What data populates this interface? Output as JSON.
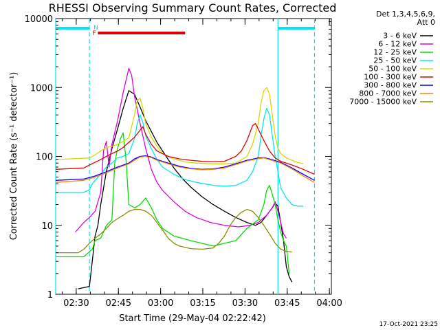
{
  "chart_data": {
    "type": "line",
    "title": "RHESSI Observing Summary Count Rates, Corrected",
    "xlabel": "Start Time (29-May-04 02:22:42)",
    "ylabel": "Corrected Count Rate (s⁻¹ detector⁻¹)",
    "yscale": "log",
    "ylim": [
      1,
      10000
    ],
    "xlim_minutes": [
      0,
      98
    ],
    "xtick_labels": [
      "02:30",
      "02:45",
      "03:00",
      "03:15",
      "03:30",
      "03:45",
      "04:00"
    ],
    "xtick_values_minutes": [
      7.3,
      22.3,
      37.3,
      52.3,
      67.3,
      82.3,
      97.3
    ],
    "ytick_labels": [
      "1",
      "10",
      "100",
      "1000",
      "10000"
    ],
    "ytick_values": [
      1,
      10,
      100,
      1000,
      10000
    ],
    "grid": false,
    "legend_placement": "outside-right",
    "legend_header": [
      "Det 1,3,4,5,6,9,",
      "Att 0"
    ],
    "footer_date": "17-Oct-2021 23:25",
    "annotations": {
      "night_flag": {
        "label": "N",
        "color": "#00e5ee",
        "segments": [
          [
            0,
            12
          ],
          [
            79,
            92
          ]
        ]
      },
      "flare_flag": {
        "label": "F",
        "color": "#e00000",
        "segments": [
          [
            15,
            46
          ]
        ]
      },
      "vlines_solid": [
        0,
        79
      ],
      "vlines_dashed": [
        12,
        92
      ]
    },
    "series": [
      {
        "name": "3 - 6 keV",
        "color": "#000000",
        "points": [
          [
            8,
            1.2
          ],
          [
            12,
            1.3
          ],
          [
            13,
            3
          ],
          [
            14,
            7
          ],
          [
            15,
            10
          ],
          [
            16,
            20
          ],
          [
            18,
            60
          ],
          [
            20,
            130
          ],
          [
            22,
            250
          ],
          [
            24,
            500
          ],
          [
            26,
            900
          ],
          [
            28,
            800
          ],
          [
            30,
            520
          ],
          [
            32,
            330
          ],
          [
            34,
            230
          ],
          [
            36,
            160
          ],
          [
            38,
            120
          ],
          [
            40,
            90
          ],
          [
            42,
            68
          ],
          [
            45,
            48
          ],
          [
            48,
            36
          ],
          [
            52,
            26
          ],
          [
            56,
            20
          ],
          [
            60,
            16
          ],
          [
            64,
            13
          ],
          [
            68,
            11
          ],
          [
            71,
            10
          ],
          [
            73,
            11
          ],
          [
            75,
            14
          ],
          [
            77,
            18
          ],
          [
            78,
            21
          ],
          [
            79,
            19
          ],
          [
            80,
            11
          ],
          [
            81,
            6
          ],
          [
            82,
            2.5
          ],
          [
            83,
            1.8
          ],
          [
            84,
            1.5
          ]
        ]
      },
      {
        "name": "6 - 12 keV",
        "color": "#e000e0",
        "points": [
          [
            7,
            8
          ],
          [
            10,
            11
          ],
          [
            12,
            13
          ],
          [
            14,
            16
          ],
          [
            16,
            30
          ],
          [
            17,
            120
          ],
          [
            18,
            165
          ],
          [
            19,
            70
          ],
          [
            20,
            150
          ],
          [
            22,
            330
          ],
          [
            24,
            850
          ],
          [
            26,
            1900
          ],
          [
            27,
            1500
          ],
          [
            28,
            750
          ],
          [
            30,
            300
          ],
          [
            32,
            130
          ],
          [
            34,
            65
          ],
          [
            36,
            42
          ],
          [
            38,
            32
          ],
          [
            42,
            22
          ],
          [
            46,
            16
          ],
          [
            50,
            13
          ],
          [
            55,
            11
          ],
          [
            60,
            10
          ],
          [
            65,
            9.5
          ],
          [
            69,
            10
          ],
          [
            72,
            11
          ],
          [
            75,
            14
          ],
          [
            77,
            18
          ],
          [
            78,
            22
          ],
          [
            79,
            16
          ],
          [
            80,
            11
          ],
          [
            81,
            7.5
          ],
          [
            82,
            6.5
          ]
        ]
      },
      {
        "name": "12 - 25 keV",
        "color": "#00e000",
        "points": [
          [
            0,
            3.5
          ],
          [
            10,
            3.5
          ],
          [
            13,
            4.5
          ],
          [
            14,
            6
          ],
          [
            16,
            6.5
          ],
          [
            17,
            8
          ],
          [
            18,
            10
          ],
          [
            20,
            12
          ],
          [
            21,
            80
          ],
          [
            22,
            130
          ],
          [
            23,
            180
          ],
          [
            24,
            220
          ],
          [
            25,
            90
          ],
          [
            26,
            20
          ],
          [
            28,
            18
          ],
          [
            30,
            20
          ],
          [
            32,
            25
          ],
          [
            34,
            18
          ],
          [
            36,
            12
          ],
          [
            38,
            9
          ],
          [
            42,
            7
          ],
          [
            48,
            6
          ],
          [
            56,
            5
          ],
          [
            64,
            6
          ],
          [
            68,
            9
          ],
          [
            72,
            12
          ],
          [
            74,
            20
          ],
          [
            75,
            32
          ],
          [
            76,
            38
          ],
          [
            77,
            28
          ],
          [
            78,
            20
          ],
          [
            79,
            12
          ],
          [
            80,
            8
          ],
          [
            81,
            6
          ],
          [
            82,
            5
          ],
          [
            83,
            2
          ]
        ]
      },
      {
        "name": "25 - 50 keV",
        "color": "#00e5ee",
        "points": [
          [
            0,
            30
          ],
          [
            10,
            30
          ],
          [
            12,
            33
          ],
          [
            13,
            40
          ],
          [
            14,
            45
          ],
          [
            16,
            55
          ],
          [
            18,
            70
          ],
          [
            20,
            80
          ],
          [
            22,
            95
          ],
          [
            24,
            100
          ],
          [
            26,
            110
          ],
          [
            28,
            180
          ],
          [
            29,
            300
          ],
          [
            30,
            400
          ],
          [
            31,
            310
          ],
          [
            32,
            200
          ],
          [
            34,
            130
          ],
          [
            36,
            90
          ],
          [
            38,
            70
          ],
          [
            42,
            55
          ],
          [
            46,
            46
          ],
          [
            50,
            42
          ],
          [
            56,
            38
          ],
          [
            60,
            37
          ],
          [
            64,
            38
          ],
          [
            68,
            45
          ],
          [
            70,
            60
          ],
          [
            72,
            100
          ],
          [
            73,
            200
          ],
          [
            74,
            350
          ],
          [
            75,
            500
          ],
          [
            76,
            400
          ],
          [
            77,
            200
          ],
          [
            78,
            100
          ],
          [
            79,
            60
          ],
          [
            80,
            35
          ],
          [
            82,
            25
          ],
          [
            84,
            20
          ],
          [
            86,
            19
          ],
          [
            88,
            19
          ]
        ]
      },
      {
        "name": "50 - 100 keV",
        "color": "#d8d800",
        "points": [
          [
            0,
            90
          ],
          [
            12,
            95
          ],
          [
            14,
            105
          ],
          [
            16,
            120
          ],
          [
            18,
            135
          ],
          [
            20,
            140
          ],
          [
            22,
            150
          ],
          [
            24,
            165
          ],
          [
            26,
            185
          ],
          [
            28,
            400
          ],
          [
            29,
            650
          ],
          [
            30,
            700
          ],
          [
            31,
            500
          ],
          [
            32,
            300
          ],
          [
            34,
            190
          ],
          [
            36,
            140
          ],
          [
            38,
            110
          ],
          [
            42,
            92
          ],
          [
            46,
            83
          ],
          [
            50,
            80
          ],
          [
            56,
            78
          ],
          [
            60,
            78
          ],
          [
            64,
            80
          ],
          [
            68,
            100
          ],
          [
            70,
            150
          ],
          [
            72,
            300
          ],
          [
            73,
            600
          ],
          [
            74,
            900
          ],
          [
            75,
            1000
          ],
          [
            76,
            800
          ],
          [
            77,
            400
          ],
          [
            78,
            200
          ],
          [
            79,
            130
          ],
          [
            80,
            110
          ],
          [
            82,
            95
          ],
          [
            84,
            88
          ],
          [
            86,
            82
          ],
          [
            88,
            78
          ]
        ]
      },
      {
        "name": "100 - 300 keV",
        "color": "#e00000",
        "points": [
          [
            0,
            65
          ],
          [
            10,
            68
          ],
          [
            12,
            75
          ],
          [
            14,
            82
          ],
          [
            16,
            90
          ],
          [
            18,
            100
          ],
          [
            20,
            110
          ],
          [
            22,
            120
          ],
          [
            24,
            135
          ],
          [
            26,
            160
          ],
          [
            28,
            190
          ],
          [
            30,
            240
          ],
          [
            31,
            270
          ],
          [
            32,
            210
          ],
          [
            34,
            150
          ],
          [
            36,
            120
          ],
          [
            40,
            100
          ],
          [
            44,
            92
          ],
          [
            48,
            88
          ],
          [
            52,
            85
          ],
          [
            56,
            84
          ],
          [
            60,
            85
          ],
          [
            64,
            100
          ],
          [
            66,
            120
          ],
          [
            68,
            170
          ],
          [
            70,
            280
          ],
          [
            71,
            300
          ],
          [
            72,
            250
          ],
          [
            74,
            170
          ],
          [
            76,
            120
          ],
          [
            78,
            95
          ],
          [
            80,
            85
          ],
          [
            84,
            75
          ],
          [
            88,
            65
          ],
          [
            92,
            55
          ]
        ]
      },
      {
        "name": "300 - 800 keV",
        "color": "#0000ff",
        "points": [
          [
            0,
            45
          ],
          [
            10,
            47
          ],
          [
            14,
            52
          ],
          [
            18,
            60
          ],
          [
            22,
            70
          ],
          [
            26,
            80
          ],
          [
            28,
            92
          ],
          [
            30,
            100
          ],
          [
            32,
            102
          ],
          [
            34,
            98
          ],
          [
            36,
            90
          ],
          [
            40,
            80
          ],
          [
            44,
            72
          ],
          [
            48,
            67
          ],
          [
            52,
            65
          ],
          [
            56,
            66
          ],
          [
            60,
            70
          ],
          [
            64,
            78
          ],
          [
            68,
            88
          ],
          [
            72,
            95
          ],
          [
            74,
            96
          ],
          [
            76,
            92
          ],
          [
            80,
            82
          ],
          [
            84,
            68
          ],
          [
            88,
            55
          ],
          [
            92,
            45
          ]
        ]
      },
      {
        "name": "800 - 7000 keV",
        "color": "#ff8000",
        "points": [
          [
            0,
            42
          ],
          [
            10,
            45
          ],
          [
            14,
            50
          ],
          [
            18,
            58
          ],
          [
            22,
            68
          ],
          [
            26,
            78
          ],
          [
            28,
            88
          ],
          [
            30,
            98
          ],
          [
            32,
            100
          ],
          [
            34,
            96
          ],
          [
            36,
            88
          ],
          [
            40,
            78
          ],
          [
            44,
            70
          ],
          [
            48,
            66
          ],
          [
            52,
            64
          ],
          [
            56,
            65
          ],
          [
            60,
            68
          ],
          [
            64,
            76
          ],
          [
            68,
            86
          ],
          [
            72,
            93
          ],
          [
            74,
            95
          ],
          [
            76,
            90
          ],
          [
            80,
            80
          ],
          [
            84,
            66
          ],
          [
            88,
            52
          ],
          [
            92,
            42
          ]
        ]
      },
      {
        "name": "7000 - 15000 keV",
        "color": "#8b8b00",
        "points": [
          [
            0,
            4
          ],
          [
            8,
            4
          ],
          [
            10,
            4.5
          ],
          [
            12,
            5.5
          ],
          [
            14,
            6.5
          ],
          [
            16,
            7.5
          ],
          [
            18,
            9
          ],
          [
            20,
            11
          ],
          [
            22,
            12.5
          ],
          [
            24,
            14
          ],
          [
            26,
            16
          ],
          [
            28,
            17
          ],
          [
            30,
            17
          ],
          [
            32,
            16
          ],
          [
            34,
            14
          ],
          [
            36,
            11
          ],
          [
            38,
            8.5
          ],
          [
            40,
            6.5
          ],
          [
            42,
            5.5
          ],
          [
            44,
            5
          ],
          [
            48,
            4.6
          ],
          [
            52,
            4.5
          ],
          [
            56,
            4.7
          ],
          [
            58,
            5.5
          ],
          [
            60,
            7
          ],
          [
            62,
            10
          ],
          [
            64,
            13
          ],
          [
            66,
            15.5
          ],
          [
            68,
            17
          ],
          [
            70,
            16
          ],
          [
            72,
            13
          ],
          [
            74,
            10
          ],
          [
            76,
            7.5
          ],
          [
            78,
            5.5
          ],
          [
            80,
            4.5
          ],
          [
            82,
            4.2
          ],
          [
            84,
            4.1
          ]
        ]
      }
    ]
  }
}
